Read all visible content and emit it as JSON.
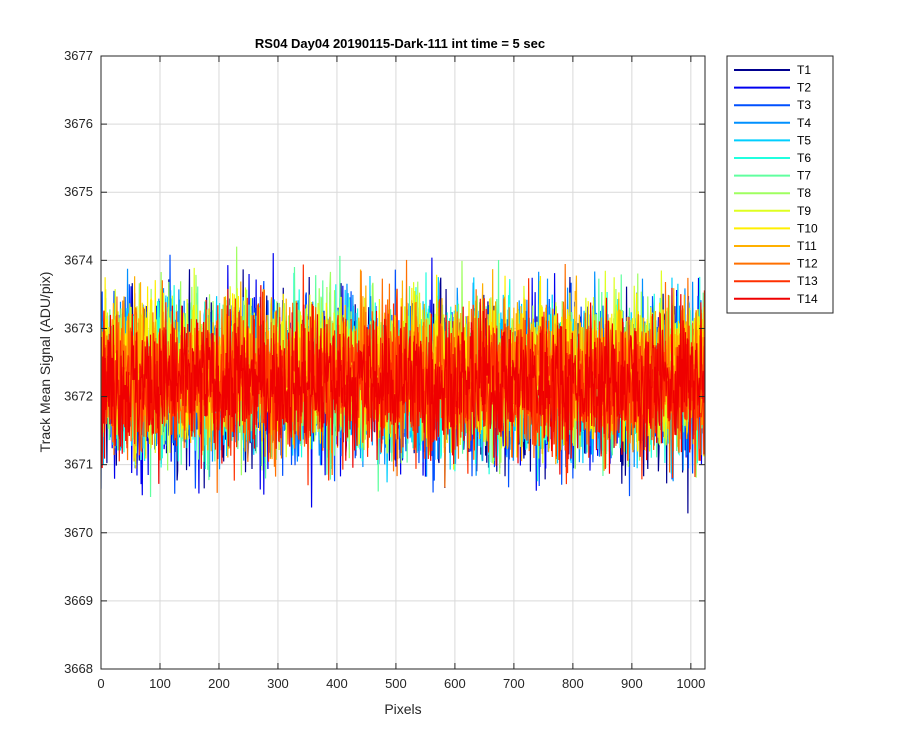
{
  "chart_data": {
    "type": "line",
    "title": "RS04 Day04 20190115-Dark-111 int time = 5 sec",
    "xlabel": "Pixels",
    "ylabel": "Track Mean Signal (ADU/pix)",
    "xlim": [
      0,
      1024
    ],
    "ylim": [
      3668,
      3677
    ],
    "xticks": [
      0,
      100,
      200,
      300,
      400,
      500,
      600,
      700,
      800,
      900,
      1000
    ],
    "yticks": [
      3668,
      3669,
      3670,
      3671,
      3672,
      3673,
      3674,
      3675,
      3676,
      3677
    ],
    "grid": true,
    "legend_position": "outside-top-right",
    "n_points": 1024,
    "series": [
      {
        "name": "T1",
        "color": "#00008F",
        "mean": 3672.2,
        "spread": 0.95
      },
      {
        "name": "T2",
        "color": "#0000EF",
        "mean": 3672.2,
        "spread": 0.95
      },
      {
        "name": "T3",
        "color": "#0050FF",
        "mean": 3672.2,
        "spread": 0.92
      },
      {
        "name": "T4",
        "color": "#0090FF",
        "mean": 3672.3,
        "spread": 0.9
      },
      {
        "name": "T5",
        "color": "#00CFFF",
        "mean": 3672.3,
        "spread": 0.9
      },
      {
        "name": "T6",
        "color": "#20FFDF",
        "mean": 3672.3,
        "spread": 0.88
      },
      {
        "name": "T7",
        "color": "#60FF9F",
        "mean": 3672.3,
        "spread": 0.88
      },
      {
        "name": "T8",
        "color": "#9FFF60",
        "mean": 3672.4,
        "spread": 0.88
      },
      {
        "name": "T9",
        "color": "#DFFF20",
        "mean": 3672.4,
        "spread": 0.85
      },
      {
        "name": "T10",
        "color": "#FFEF00",
        "mean": 3672.4,
        "spread": 0.85
      },
      {
        "name": "T11",
        "color": "#FFB000",
        "mean": 3672.4,
        "spread": 0.85
      },
      {
        "name": "T12",
        "color": "#FF7000",
        "mean": 3672.3,
        "spread": 0.85
      },
      {
        "name": "T13",
        "color": "#FF3000",
        "mean": 3672.2,
        "spread": 0.85
      },
      {
        "name": "T14",
        "color": "#EF0000",
        "mean": 3672.2,
        "spread": 0.82
      }
    ]
  }
}
